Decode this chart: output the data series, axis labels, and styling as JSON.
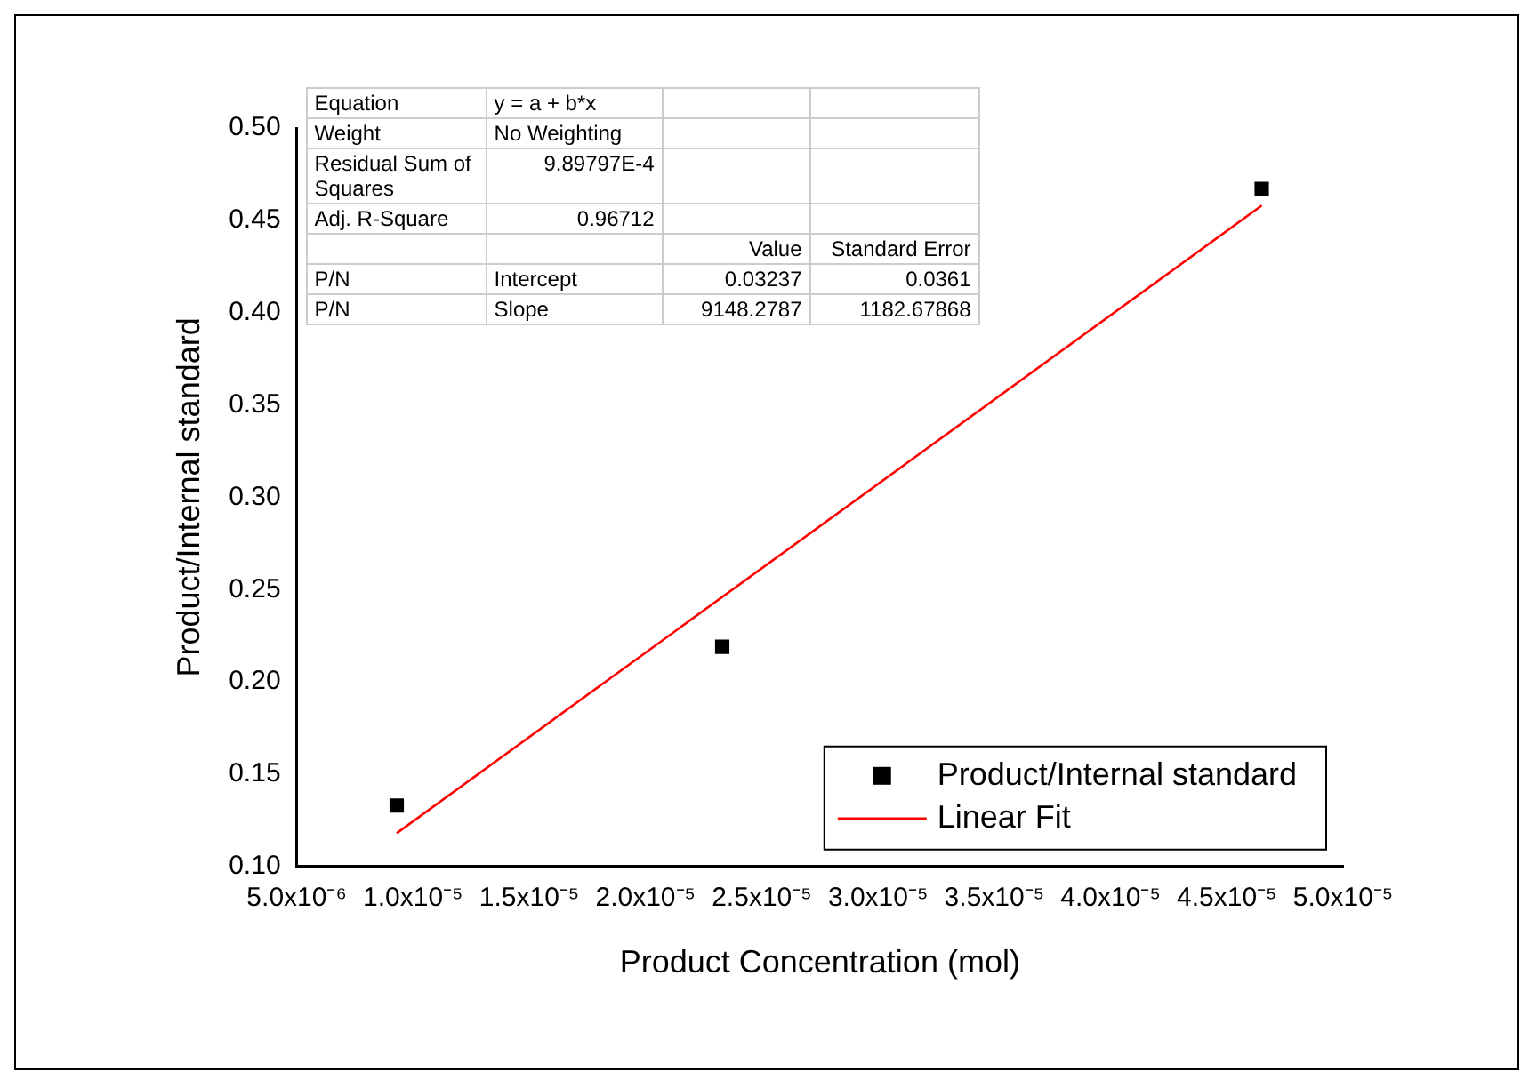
{
  "chart_data": {
    "type": "scatter",
    "xlabel": "Product Concentration (mol)",
    "ylabel": "Product/Internal standard",
    "xlim": [
      5e-06,
      5e-05
    ],
    "ylim": [
      0.1,
      0.5
    ],
    "xticks": [
      {
        "value": 5e-06,
        "label": "5.0x10⁻⁶"
      },
      {
        "value": 1e-05,
        "label": "1.0x10⁻⁵"
      },
      {
        "value": 1.5e-05,
        "label": "1.5x10⁻⁵"
      },
      {
        "value": 2e-05,
        "label": "2.0x10⁻⁵"
      },
      {
        "value": 2.5e-05,
        "label": "2.5x10⁻⁵"
      },
      {
        "value": 3e-05,
        "label": "3.0x10⁻⁵"
      },
      {
        "value": 3.5e-05,
        "label": "3.5x10⁻⁵"
      },
      {
        "value": 4e-05,
        "label": "4.0x10⁻⁵"
      },
      {
        "value": 4.5e-05,
        "label": "4.5x10⁻⁵"
      },
      {
        "value": 5e-05,
        "label": "5.0x10⁻⁵"
      }
    ],
    "yticks": [
      {
        "value": 0.1,
        "label": "0.10"
      },
      {
        "value": 0.15,
        "label": "0.15"
      },
      {
        "value": 0.2,
        "label": "0.20"
      },
      {
        "value": 0.25,
        "label": "0.25"
      },
      {
        "value": 0.3,
        "label": "0.30"
      },
      {
        "value": 0.35,
        "label": "0.35"
      },
      {
        "value": 0.4,
        "label": "0.40"
      },
      {
        "value": 0.45,
        "label": "0.45"
      },
      {
        "value": 0.5,
        "label": "0.50"
      }
    ],
    "series": [
      {
        "name": "Product/Internal standard",
        "color": "#000000",
        "marker": "square",
        "x": [
          9.3e-06,
          2.33e-05,
          4.65e-05
        ],
        "values": [
          0.133,
          0.219,
          0.467
        ]
      },
      {
        "name": "Linear Fit",
        "type": "line",
        "color": "#ff0000",
        "marker": "none",
        "x": [
          9.3e-06,
          4.65e-05
        ],
        "values": [
          0.118,
          0.458
        ]
      }
    ],
    "legend": "bottom right",
    "grid": false,
    "annotations": [
      "Equation",
      "y = a + b*x",
      "Weight",
      "No Weighting",
      "Residual Sum of Squares",
      "9.89797E-4",
      "Adj. R-Square",
      "0.96712",
      "Value",
      "Standard Error",
      "P/N",
      "Intercept",
      "0.03237",
      "0.0361",
      "P/N",
      "Slope",
      "9148.2787",
      "1182.67868"
    ]
  }
}
